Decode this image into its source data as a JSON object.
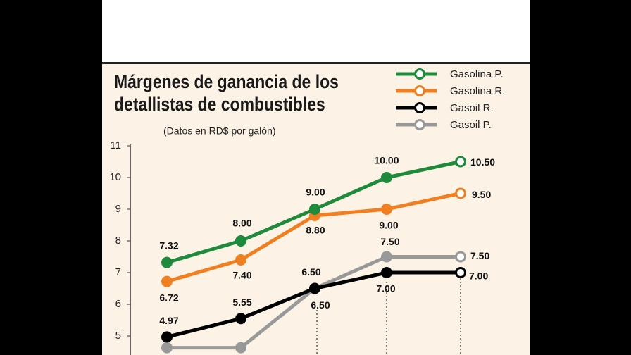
{
  "chart_data": {
    "type": "line",
    "title": "Márgenes de ganancia de los detallistas de combustibles",
    "subtitle": "(Datos en RD$ por galón)",
    "categories": [
      null,
      null,
      null,
      null,
      null
    ],
    "ylim": [
      4.4,
      11
    ],
    "yticks": [
      5,
      6,
      7,
      8,
      9,
      10,
      11
    ],
    "legend": "top-right",
    "series": [
      {
        "name": "Gasolina P.",
        "color": "#1f8a3c",
        "values": [
          7.32,
          8.0,
          9.0,
          10.0,
          10.5
        ],
        "value_labels": [
          "7.32",
          "8.00",
          "9.00",
          "10.00",
          "10.50"
        ]
      },
      {
        "name": "Gasolina R.",
        "color": "#f07f22",
        "values": [
          6.72,
          7.4,
          8.8,
          9.0,
          9.5
        ],
        "value_labels": [
          "6.72",
          "7.40",
          "8.80",
          "9.00",
          "9.50"
        ]
      },
      {
        "name": "Gasoil R.",
        "color": "#000000",
        "values": [
          4.97,
          5.55,
          6.5,
          7.0,
          7.0
        ],
        "value_labels": [
          "4.97",
          "5.55",
          "6.50",
          "7.00",
          "7.00"
        ]
      },
      {
        "name": "Gasoil P.",
        "color": "#999999",
        "values": [
          4.63,
          4.63,
          6.5,
          7.5,
          7.5
        ],
        "value_labels": [
          null,
          null,
          "6.50",
          "7.50",
          "7.50"
        ]
      }
    ]
  }
}
